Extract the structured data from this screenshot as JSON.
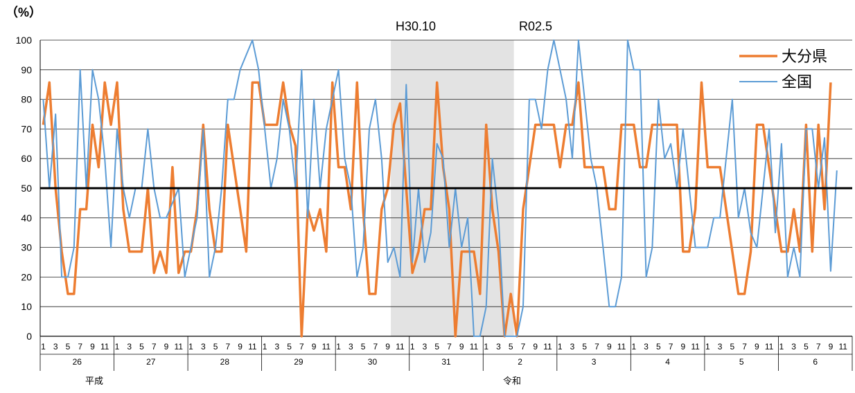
{
  "chart_data": {
    "type": "line",
    "ylabel": "（%）",
    "ylim": [
      0,
      100
    ],
    "yticks": [
      0,
      10,
      20,
      30,
      40,
      50,
      60,
      70,
      80,
      90,
      100
    ],
    "grid": true,
    "reference_line": 50,
    "month_tick_labels": [
      "1",
      "3",
      "5",
      "7",
      "9",
      "11"
    ],
    "years": [
      "26",
      "27",
      "28",
      "29",
      "30",
      "31",
      "2",
      "3",
      "4",
      "5",
      "6"
    ],
    "eras": [
      "平成",
      "令和"
    ],
    "shaded_period": {
      "start": "H30.10",
      "end": "R02.5",
      "start_label": "H30.10",
      "end_label": "R02.5"
    },
    "legend_position": "top-right",
    "colors": {
      "oita": "#ED7D31",
      "national": "#5B9BD5",
      "reference": "#000000",
      "shade": "#E3E3E3"
    },
    "series": [
      {
        "name": "大分県",
        "values": [
          71.4,
          85.7,
          50,
          28.6,
          14.3,
          14.3,
          42.9,
          42.9,
          71.4,
          57.1,
          85.7,
          71.4,
          85.7,
          42.9,
          28.6,
          28.6,
          28.6,
          50,
          21.4,
          28.6,
          21.4,
          57.1,
          21.4,
          28.6,
          28.6,
          42.9,
          71.4,
          42.9,
          28.6,
          28.6,
          71.4,
          57.1,
          42.9,
          28.6,
          85.7,
          85.7,
          71.4,
          71.4,
          71.4,
          85.7,
          71.4,
          64.3,
          0,
          42.9,
          35.7,
          42.9,
          28.6,
          85.7,
          57.1,
          57.1,
          42.9,
          85.7,
          42.9,
          14.3,
          14.3,
          42.9,
          50,
          71.4,
          78.6,
          50,
          21.4,
          28.6,
          42.9,
          42.9,
          85.7,
          57.1,
          42.9,
          0,
          28.6,
          28.6,
          28.6,
          14.3,
          71.4,
          42.9,
          28.6,
          0,
          14.3,
          0,
          42.9,
          57.1,
          71.4,
          71.4,
          71.4,
          71.4,
          57.1,
          71.4,
          71.4,
          85.7,
          57.1,
          57.1,
          57.1,
          57.1,
          42.9,
          42.9,
          71.4,
          71.4,
          71.4,
          57.1,
          57.1,
          71.4,
          71.4,
          71.4,
          71.4,
          71.4,
          28.6,
          28.6,
          42.9,
          85.7,
          57.1,
          57.1,
          57.1,
          42.9,
          28.6,
          14.3,
          14.3,
          28.6,
          71.4,
          71.4,
          57.1,
          42.9,
          28.6,
          28.6,
          42.9,
          28.6,
          71.4,
          28.6,
          71.4,
          42.9,
          85.7
        ]
      },
      {
        "name": "全国",
        "values": [
          80,
          50,
          75,
          20,
          20,
          30,
          90,
          50,
          90,
          80,
          60,
          30,
          70,
          50,
          40,
          50,
          50,
          70,
          50,
          40,
          40,
          45,
          50,
          20,
          30,
          40,
          70,
          20,
          30,
          50,
          80,
          80,
          90,
          95,
          100,
          90,
          70,
          50,
          60,
          80,
          70,
          50,
          90,
          40,
          80,
          50,
          70,
          80,
          90,
          60,
          50,
          20,
          30,
          70,
          80,
          60,
          25,
          30,
          20,
          85,
          25,
          50,
          25,
          35,
          65,
          60,
          30,
          50,
          30,
          40,
          0,
          0,
          10,
          60,
          40,
          0,
          0,
          0,
          10,
          80,
          80,
          70,
          90,
          100,
          90,
          80,
          60,
          100,
          80,
          60,
          50,
          30,
          10,
          10,
          20,
          100,
          90,
          90,
          20,
          30,
          80,
          60,
          65,
          50,
          70,
          50,
          30,
          30,
          30,
          40,
          40,
          60,
          80,
          40,
          50,
          35,
          30,
          50,
          70,
          35,
          65,
          20,
          30,
          20,
          70,
          70,
          50,
          67,
          22,
          56
        ]
      }
    ]
  }
}
